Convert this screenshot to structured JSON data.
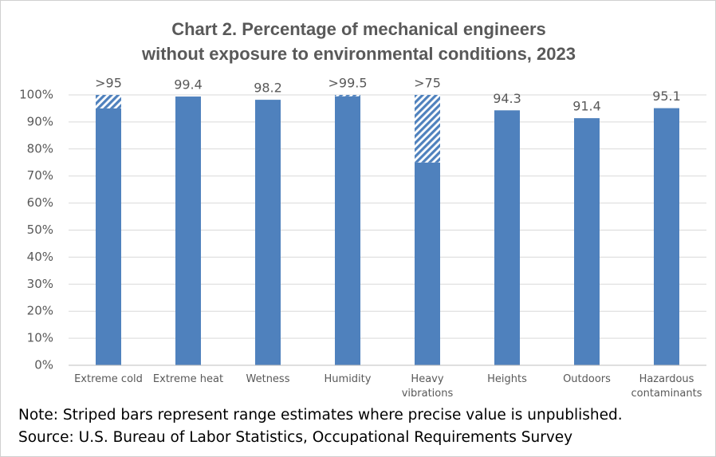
{
  "chart_data": {
    "type": "bar",
    "title": "Chart 2. Percentage of mechanical engineers without exposure to environmental conditions, 2023",
    "categories": [
      "Extreme cold",
      "Extreme heat",
      "Wetness",
      "Humidity",
      "Heavy\nvibrations",
      "Heights",
      "Outdoors",
      "Hazardous\ncontaminants"
    ],
    "values": [
      95,
      99.4,
      98.2,
      99.5,
      75,
      94.3,
      91.4,
      95.1
    ],
    "value_labels": [
      ">95",
      "99.4",
      "98.2",
      ">99.5",
      ">75",
      "94.3",
      "91.4",
      "95.1"
    ],
    "range_values": [
      5,
      null,
      null,
      0.5,
      25,
      null,
      null,
      null
    ],
    "color": "#4f81bd",
    "ylim": [
      0,
      100
    ],
    "yticks": [
      {
        "value": 0,
        "label": "0%"
      },
      {
        "value": 10,
        "label": "10%"
      },
      {
        "value": 20,
        "label": "20%"
      },
      {
        "value": 30,
        "label": "30%"
      },
      {
        "value": 40,
        "label": "40%"
      },
      {
        "value": 50,
        "label": "50%"
      },
      {
        "value": 60,
        "label": "60%"
      },
      {
        "value": 70,
        "label": "70%"
      },
      {
        "value": 80,
        "label": "80%"
      },
      {
        "value": 90,
        "label": "90%"
      },
      {
        "value": 100,
        "label": "100%"
      }
    ],
    "grid": true,
    "notes": [
      "Note: Striped bars represent range estimates where precise value is unpublished.",
      "Source: U.S. Bureau of Labor Statistics, Occupational Requirements Survey"
    ]
  }
}
